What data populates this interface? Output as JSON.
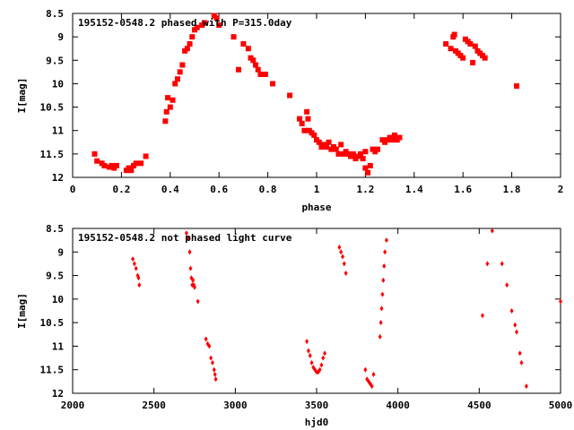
{
  "chart_data": [
    {
      "type": "scatter",
      "title": "195152-0548.2 phased with P=315.0day",
      "xlabel": "phase",
      "ylabel": "I[mag]",
      "xlim": [
        0,
        2
      ],
      "ylim": [
        12,
        8.5
      ],
      "y_inverted": true,
      "grid": false,
      "marker": "filled-square",
      "color": "#ff0000",
      "x_ticks": [
        "0",
        "0.2",
        "0.4",
        "0.6",
        "0.8",
        "1",
        "1.2",
        "1.4",
        "1.6",
        "1.8",
        "2"
      ],
      "y_ticks": [
        "8.5",
        "9",
        "9.5",
        "10",
        "10.5",
        "11",
        "11.5",
        "12"
      ],
      "series": [
        {
          "points": [
            [
              0.09,
              11.5
            ],
            [
              0.1,
              11.65
            ],
            [
              0.12,
              11.7
            ],
            [
              0.13,
              11.75
            ],
            [
              0.15,
              11.78
            ],
            [
              0.16,
              11.75
            ],
            [
              0.17,
              11.8
            ],
            [
              0.18,
              11.75
            ],
            [
              0.22,
              11.85
            ],
            [
              0.23,
              11.8
            ],
            [
              0.24,
              11.85
            ],
            [
              0.25,
              11.75
            ],
            [
              0.26,
              11.7
            ],
            [
              0.28,
              11.7
            ],
            [
              0.3,
              11.55
            ],
            [
              0.38,
              10.8
            ],
            [
              0.385,
              10.6
            ],
            [
              0.39,
              10.3
            ],
            [
              0.4,
              10.5
            ],
            [
              0.41,
              10.35
            ],
            [
              0.42,
              10.0
            ],
            [
              0.43,
              9.9
            ],
            [
              0.44,
              9.75
            ],
            [
              0.45,
              9.6
            ],
            [
              0.46,
              9.3
            ],
            [
              0.47,
              9.25
            ],
            [
              0.48,
              9.15
            ],
            [
              0.49,
              9.0
            ],
            [
              0.5,
              8.85
            ],
            [
              0.51,
              8.8
            ],
            [
              0.53,
              8.75
            ],
            [
              0.54,
              8.7
            ],
            [
              0.58,
              8.55
            ],
            [
              0.59,
              8.6
            ],
            [
              0.6,
              8.75
            ],
            [
              0.66,
              9.0
            ],
            [
              0.68,
              9.7
            ],
            [
              0.7,
              9.15
            ],
            [
              0.72,
              9.25
            ],
            [
              0.73,
              9.45
            ],
            [
              0.74,
              9.5
            ],
            [
              0.75,
              9.6
            ],
            [
              0.76,
              9.7
            ],
            [
              0.77,
              9.8
            ],
            [
              0.79,
              9.8
            ],
            [
              0.82,
              10.0
            ],
            [
              0.89,
              10.25
            ],
            [
              0.93,
              10.75
            ],
            [
              0.94,
              10.85
            ],
            [
              0.95,
              11.0
            ],
            [
              0.96,
              10.6
            ],
            [
              0.965,
              10.75
            ],
            [
              0.97,
              11.0
            ],
            [
              0.98,
              11.05
            ],
            [
              0.99,
              11.1
            ],
            [
              1.0,
              11.2
            ],
            [
              1.01,
              11.25
            ],
            [
              1.02,
              11.35
            ],
            [
              1.03,
              11.3
            ],
            [
              1.04,
              11.35
            ],
            [
              1.05,
              11.25
            ],
            [
              1.06,
              11.4
            ],
            [
              1.07,
              11.35
            ],
            [
              1.08,
              11.4
            ],
            [
              1.09,
              11.5
            ],
            [
              1.1,
              11.3
            ],
            [
              1.11,
              11.5
            ],
            [
              1.12,
              11.45
            ],
            [
              1.13,
              11.5
            ],
            [
              1.14,
              11.55
            ],
            [
              1.15,
              11.5
            ],
            [
              1.16,
              11.6
            ],
            [
              1.17,
              11.55
            ],
            [
              1.18,
              11.5
            ],
            [
              1.19,
              11.6
            ],
            [
              1.2,
              11.45
            ],
            [
              1.2,
              11.8
            ],
            [
              1.21,
              11.9
            ],
            [
              1.22,
              11.75
            ],
            [
              1.23,
              11.4
            ],
            [
              1.24,
              11.45
            ],
            [
              1.25,
              11.4
            ],
            [
              1.27,
              11.2
            ],
            [
              1.28,
              11.25
            ],
            [
              1.29,
              11.2
            ],
            [
              1.3,
              11.15
            ],
            [
              1.31,
              11.2
            ],
            [
              1.32,
              11.1
            ],
            [
              1.33,
              11.2
            ],
            [
              1.34,
              11.15
            ],
            [
              1.53,
              9.15
            ],
            [
              1.55,
              9.25
            ],
            [
              1.56,
              9.0
            ],
            [
              1.565,
              8.95
            ],
            [
              1.57,
              9.3
            ],
            [
              1.58,
              9.35
            ],
            [
              1.59,
              9.4
            ],
            [
              1.6,
              9.45
            ],
            [
              1.61,
              9.05
            ],
            [
              1.62,
              9.1
            ],
            [
              1.63,
              9.15
            ],
            [
              1.64,
              9.55
            ],
            [
              1.65,
              9.2
            ],
            [
              1.66,
              9.3
            ],
            [
              1.67,
              9.35
            ],
            [
              1.68,
              9.4
            ],
            [
              1.69,
              9.45
            ],
            [
              1.82,
              10.05
            ]
          ]
        }
      ]
    },
    {
      "type": "scatter",
      "title": "195152-0548.2 not phased light curve",
      "xlabel": "hjd0",
      "ylabel": "I[mag]",
      "xlim": [
        2000,
        5000
      ],
      "ylim": [
        12,
        8.5
      ],
      "y_inverted": true,
      "grid": false,
      "marker": "filled-diamond",
      "color": "#ff0000",
      "x_ticks": [
        "2000",
        "2500",
        "3000",
        "3500",
        "4000",
        "4500",
        "5000"
      ],
      "y_ticks": [
        "8.5",
        "9",
        "9.5",
        "10",
        "10.5",
        "11",
        "11.5",
        "12"
      ],
      "series": [
        {
          "points": [
            [
              2370,
              9.15
            ],
            [
              2380,
              9.25
            ],
            [
              2390,
              9.35
            ],
            [
              2400,
              9.5
            ],
            [
              2405,
              9.55
            ],
            [
              2410,
              9.7
            ],
            [
              2700,
              8.6
            ],
            [
              2710,
              8.7
            ],
            [
              2720,
              9.0
            ],
            [
              2725,
              9.35
            ],
            [
              2730,
              9.55
            ],
            [
              2735,
              9.7
            ],
            [
              2740,
              9.6
            ],
            [
              2745,
              9.7
            ],
            [
              2750,
              9.75
            ],
            [
              2770,
              10.05
            ],
            [
              2820,
              10.85
            ],
            [
              2830,
              10.95
            ],
            [
              2840,
              11.0
            ],
            [
              2850,
              11.25
            ],
            [
              2860,
              11.35
            ],
            [
              2870,
              11.5
            ],
            [
              2875,
              11.6
            ],
            [
              2880,
              11.7
            ],
            [
              3440,
              10.9
            ],
            [
              3450,
              11.1
            ],
            [
              3460,
              11.2
            ],
            [
              3470,
              11.35
            ],
            [
              3480,
              11.45
            ],
            [
              3490,
              11.5
            ],
            [
              3500,
              11.55
            ],
            [
              3510,
              11.55
            ],
            [
              3520,
              11.5
            ],
            [
              3530,
              11.4
            ],
            [
              3540,
              11.25
            ],
            [
              3550,
              11.15
            ],
            [
              3640,
              8.9
            ],
            [
              3650,
              9.0
            ],
            [
              3660,
              9.1
            ],
            [
              3670,
              9.25
            ],
            [
              3680,
              9.45
            ],
            [
              3800,
              11.5
            ],
            [
              3810,
              11.7
            ],
            [
              3820,
              11.75
            ],
            [
              3830,
              11.8
            ],
            [
              3840,
              11.85
            ],
            [
              3850,
              11.6
            ],
            [
              3890,
              10.8
            ],
            [
              3895,
              10.5
            ],
            [
              3900,
              10.2
            ],
            [
              3905,
              9.9
            ],
            [
              3910,
              9.6
            ],
            [
              3915,
              9.3
            ],
            [
              3920,
              9.0
            ],
            [
              3930,
              8.75
            ],
            [
              4520,
              10.35
            ],
            [
              4550,
              9.25
            ],
            [
              4580,
              8.55
            ],
            [
              4640,
              9.25
            ],
            [
              4670,
              9.7
            ],
            [
              4700,
              10.25
            ],
            [
              4720,
              10.55
            ],
            [
              4730,
              10.7
            ],
            [
              4750,
              11.15
            ],
            [
              4760,
              11.35
            ],
            [
              4790,
              11.85
            ],
            [
              5000,
              10.05
            ]
          ]
        }
      ]
    }
  ]
}
